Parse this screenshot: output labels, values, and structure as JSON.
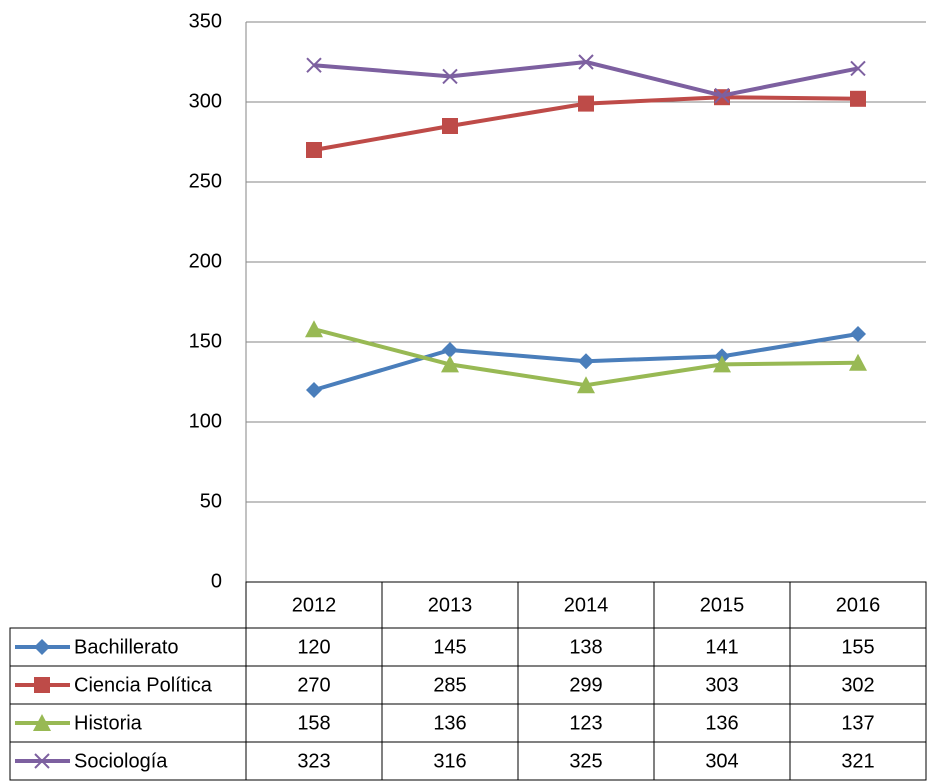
{
  "chart_data": {
    "type": "line",
    "categories": [
      "2012",
      "2013",
      "2014",
      "2015",
      "2016"
    ],
    "series": [
      {
        "name": "Bachillerato",
        "color": "#4a7ebb",
        "marker": "diamond",
        "values": [
          120,
          145,
          138,
          141,
          155
        ]
      },
      {
        "name": "Ciencia Política",
        "color": "#be4b48",
        "marker": "square",
        "values": [
          270,
          285,
          299,
          303,
          302
        ]
      },
      {
        "name": "Historia",
        "color": "#98b954",
        "marker": "triangle",
        "values": [
          158,
          136,
          123,
          136,
          137
        ]
      },
      {
        "name": "Sociología",
        "color": "#7d60a0",
        "marker": "x",
        "values": [
          323,
          316,
          325,
          304,
          321
        ]
      }
    ],
    "ylim": [
      0,
      350
    ],
    "yticks": [
      0,
      50,
      100,
      150,
      200,
      250,
      300,
      350
    ],
    "grid": true,
    "data_table": true
  }
}
